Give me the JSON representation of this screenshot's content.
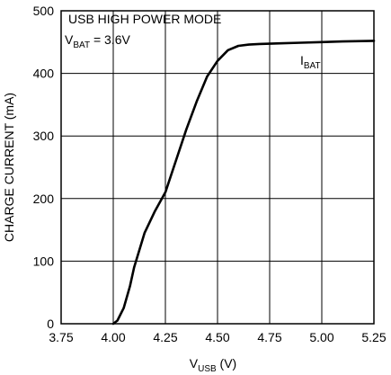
{
  "chart_data": {
    "type": "line",
    "title": "",
    "xlabel": {
      "base": "V",
      "sub": "USB",
      "suffix": " (V)"
    },
    "ylabel": "CHARGE CURRENT (mA)",
    "xlim": [
      3.75,
      5.25
    ],
    "ylim": [
      0,
      500
    ],
    "x_ticks": [
      "3.75",
      "4.00",
      "4.25",
      "4.50",
      "4.75",
      "5.00",
      "5.25"
    ],
    "y_ticks": [
      "0",
      "100",
      "200",
      "300",
      "400",
      "500"
    ],
    "grid": true,
    "annotations": {
      "line1": "USB HIGH POWER MODE",
      "line2": {
        "base": "V",
        "sub": "BAT",
        "suffix": " = 3.6V"
      }
    },
    "series": [
      {
        "name": {
          "base": "I",
          "sub": "BAT"
        },
        "x": [
          4.0,
          4.02,
          4.05,
          4.08,
          4.1,
          4.15,
          4.2,
          4.25,
          4.3,
          4.35,
          4.4,
          4.45,
          4.5,
          4.55,
          4.6,
          4.65,
          4.7,
          4.8,
          4.9,
          5.0,
          5.1,
          5.25
        ],
        "y": [
          0,
          5,
          25,
          60,
          90,
          145,
          180,
          210,
          260,
          310,
          355,
          395,
          420,
          437,
          444,
          446,
          447,
          448,
          449,
          450,
          451,
          452
        ]
      }
    ]
  }
}
